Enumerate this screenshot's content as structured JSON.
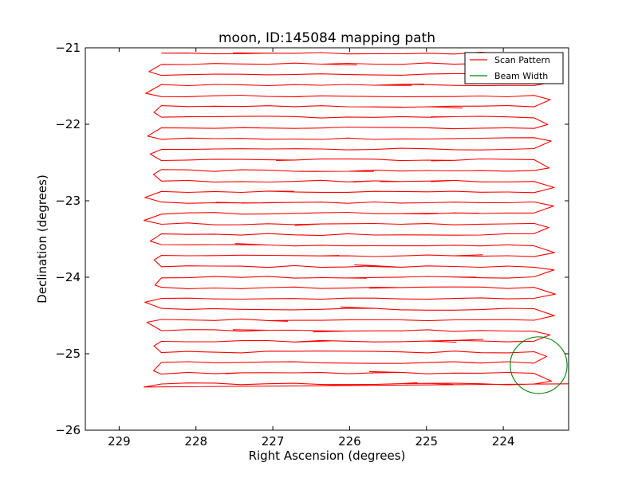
{
  "chart_data": {
    "type": "line",
    "title": "moon, ID:145084 mapping path",
    "xlabel": "Right Ascension (degrees)",
    "ylabel": "Declination (degrees)",
    "xlim": [
      229.44,
      223.15
    ],
    "ylim": [
      -26.0,
      -21.0
    ],
    "x_inverted": true,
    "xticks": [
      229,
      228,
      227,
      226,
      225,
      224
    ],
    "xtick_labels": [
      "229",
      "228",
      "227",
      "226",
      "225",
      "224"
    ],
    "yticks": [
      -21,
      -22,
      -23,
      -24,
      -25,
      -26
    ],
    "ytick_labels": [
      "−21",
      "−22",
      "−23",
      "−24",
      "−25",
      "−26"
    ],
    "grid": false,
    "legend_position": "top-right",
    "series": [
      {
        "name": "Scan Pattern",
        "color": "#ff0000",
        "scan_rows": {
          "dec_start": -21.07,
          "dec_step": -0.1395,
          "count": 32,
          "ra_east_edge": 228.45,
          "ra_west_edge": 223.6,
          "turn_bulge_east": 228.68,
          "turn_bulge_west": 223.32
        }
      },
      {
        "name": "Beam Width",
        "color": "#008000",
        "circle": {
          "center_ra": 223.54,
          "center_dec": -25.15,
          "radius_deg": 0.37
        }
      }
    ],
    "legend": [
      "Scan Pattern",
      "Beam Width"
    ]
  }
}
